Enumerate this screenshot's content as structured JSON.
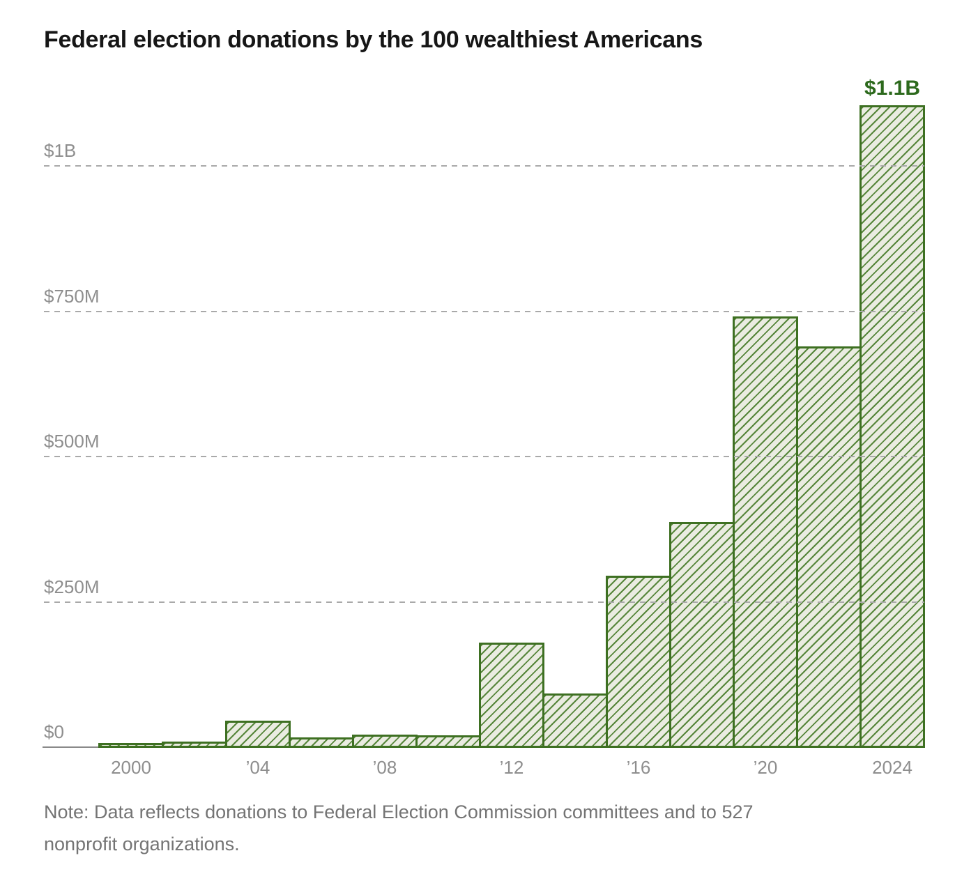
{
  "title": "Federal election donations by the 100 wealthiest Americans",
  "annotation": {
    "top_bar_label": "$1.1B"
  },
  "note_lines": [
    "Note: Data reflects donations to Federal Election Commission committees and to 527",
    "nonprofit organizations."
  ],
  "colors": {
    "bar_fill": "#eaece1",
    "bar_hatch": "#4e8031",
    "bar_border": "#3e7022",
    "peak_label_green": "#2c691c",
    "axis_gray": "#8e8e8e",
    "gridline_gray": "#a9a9a9",
    "baseline_gray": "#8a8a8a",
    "note_gray": "#747474",
    "title_black": "#161616"
  },
  "chart_data": {
    "type": "bar",
    "title": "Federal election donations by the 100 wealthiest Americans",
    "xlabel": "",
    "ylabel": "",
    "units": "millions of US dollars",
    "categories": [
      2000,
      2002,
      2004,
      2006,
      2008,
      2010,
      2012,
      2014,
      2016,
      2018,
      2020,
      2022,
      2024
    ],
    "values": [
      8,
      11,
      47,
      18,
      23,
      22,
      181,
      94,
      296,
      388,
      742,
      691,
      1105
    ],
    "bar_width_years": 2,
    "x_ticks": [
      {
        "year": 2000,
        "label": "2000"
      },
      {
        "year": 2004,
        "label": "’04"
      },
      {
        "year": 2008,
        "label": "’08"
      },
      {
        "year": 2012,
        "label": "’12"
      },
      {
        "year": 2016,
        "label": "’16"
      },
      {
        "year": 2020,
        "label": "’20"
      },
      {
        "year": 2024,
        "label": "2024"
      }
    ],
    "y_ticks": [
      {
        "value": 0,
        "label": "$0"
      },
      {
        "value": 250,
        "label": "$250M"
      },
      {
        "value": 500,
        "label": "$500M"
      },
      {
        "value": 750,
        "label": "$750M"
      },
      {
        "value": 1000,
        "label": "$1B"
      }
    ],
    "ylim": [
      0,
      1150
    ],
    "grid": "horizontal dashed, drawn over bars",
    "legend": "none",
    "bar_style": "light green fill with green diagonal hatch and dark green border",
    "data_label": {
      "category": 2024,
      "text": "$1.1B"
    }
  }
}
